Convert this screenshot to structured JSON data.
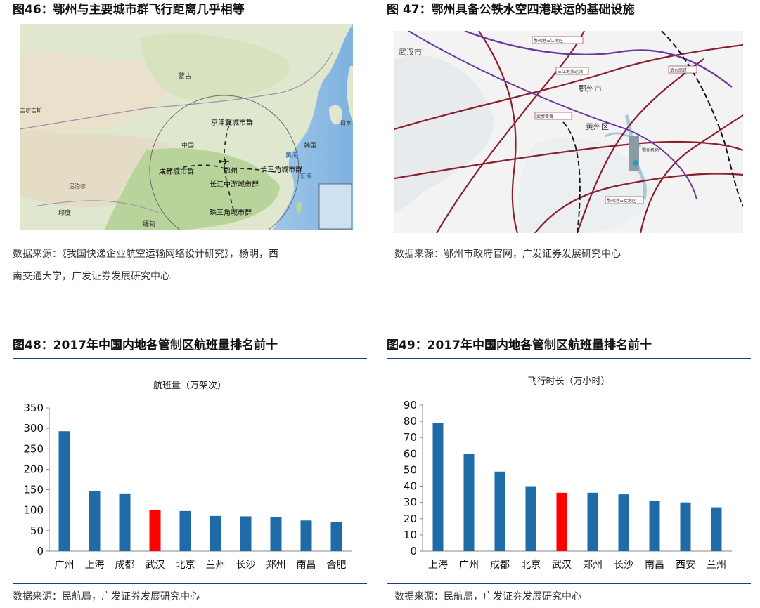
{
  "fig46": {
    "title": "图46：鄂州与主要城市群飞行距离几乎相等",
    "source_line1": "数据来源：《我国快递企业航空运输网络设计研究》，杨明，西",
    "source_line2": "南交通大学，广发证券发展研究中心",
    "map_labels": {
      "mongolia": "蒙古",
      "kazakhstan": "吉尔吉斯",
      "china": "中国",
      "korea": "韩国",
      "japan": "日本",
      "yellow_sea": "黄海",
      "east_sea": "东海",
      "nepal": "尼泊尔",
      "india": "印度",
      "myanmar": "缅甸",
      "jingjin": "京津冀城市群",
      "chengdu": "成都城市群",
      "ezhou": "鄂州",
      "changsanjiao": "长三角城市群",
      "changjiang": "长江中游城市群",
      "zhusanjiao": "珠三角城市群"
    }
  },
  "fig47": {
    "title": "图 47：鄂州具备公铁水空四港联运的基础设施",
    "source": "数据来源：鄂州市政府官网，广发证券发展研究中心",
    "map_labels": {
      "wuhan": "武汉市",
      "ezhou": "鄂州市",
      "huangzhou": "黄州区",
      "label_a": "鄂州港三江港区",
      "label_b": "三江港货运站",
      "label_c": "武鄂黄黄",
      "label_d": "鄂州港五丈港区",
      "label_e": "武九高铁",
      "label_f": "鄂州机场"
    }
  },
  "fig48": {
    "title": "图48：2017年中国内地各管制区航班量排名前十",
    "source": "数据来源：民航局，广发证券发展研究中心",
    "chart_data": {
      "type": "bar",
      "title": "航班量（万架次）",
      "categories": [
        "广州",
        "上海",
        "成都",
        "武汉",
        "北京",
        "兰州",
        "长沙",
        "郑州",
        "南昌",
        "合肥"
      ],
      "values": [
        293,
        146,
        141,
        100,
        98,
        86,
        85,
        83,
        75,
        72
      ],
      "highlight_index": 3,
      "bar_color": "#1f6ba8",
      "highlight_color": "#ff0000",
      "ylim": [
        0,
        350
      ],
      "yticks": [
        0,
        50,
        100,
        150,
        200,
        250,
        300,
        350
      ]
    }
  },
  "fig49": {
    "title": "图49：2017年中国内地各管制区航班量排名前十",
    "source": "数据来源：民航局，广发证券发展研究中心",
    "chart_data": {
      "type": "bar",
      "title": "飞行时长（万小时）",
      "categories": [
        "上海",
        "广州",
        "成都",
        "北京",
        "武汉",
        "郑州",
        "长沙",
        "南昌",
        "西安",
        "兰州"
      ],
      "values": [
        79,
        60,
        49,
        40,
        36,
        36,
        35,
        31,
        30,
        27
      ],
      "highlight_index": 4,
      "bar_color": "#1f6ba8",
      "highlight_color": "#ff0000",
      "ylim": [
        0,
        90
      ],
      "yticks": [
        0,
        10,
        20,
        30,
        40,
        50,
        60,
        70,
        80,
        90
      ]
    }
  }
}
